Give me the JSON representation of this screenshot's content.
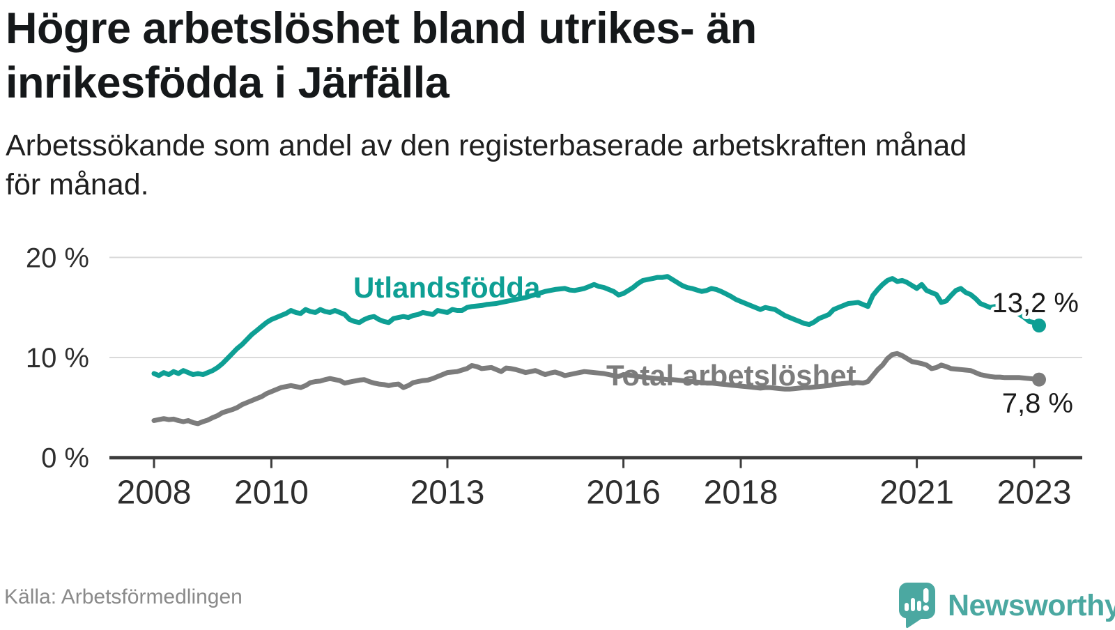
{
  "title": "Högre arbetslöshet bland utrikes- än\ninrikesfödda i Järfälla",
  "subtitle": "Arbetssökande som andel av den registerbaserade arbetskraften månad\nför månad.",
  "source": "Källa: Arbetsförmedlingen",
  "branding": {
    "name": "Newsworthy",
    "logo_color": "#4ba8a1"
  },
  "chart_data": {
    "type": "line",
    "unit": "%",
    "frequency": "monthly",
    "start_month": "2008-01",
    "end_month": "2023-02",
    "ylim": [
      0,
      20
    ],
    "grid": "horizontal",
    "y_ticks": [
      {
        "value": 20,
        "label": "20 %"
      },
      {
        "value": 10,
        "label": "10 %"
      },
      {
        "value": 0,
        "label": "0 %"
      }
    ],
    "x_ticks": [
      {
        "year": 2008,
        "label": "2008"
      },
      {
        "year": 2010,
        "label": "2010"
      },
      {
        "year": 2013,
        "label": "2013"
      },
      {
        "year": 2016,
        "label": "2016"
      },
      {
        "year": 2018,
        "label": "2018"
      },
      {
        "year": 2021,
        "label": "2021"
      },
      {
        "year": 2023,
        "label": "2023"
      }
    ],
    "series": [
      {
        "name": "Utlandsfödda",
        "color": "#0e9f94",
        "end_label": "13,2 %",
        "end_value": 13.2,
        "values": [
          8.4,
          8.2,
          8.5,
          8.3,
          8.6,
          8.4,
          8.7,
          8.5,
          8.3,
          8.4,
          8.3,
          8.5,
          8.7,
          9.0,
          9.4,
          9.9,
          10.4,
          10.9,
          11.3,
          11.8,
          12.3,
          12.7,
          13.1,
          13.5,
          13.8,
          14.0,
          14.2,
          14.4,
          14.7,
          14.5,
          14.4,
          14.8,
          14.6,
          14.5,
          14.8,
          14.6,
          14.5,
          14.7,
          14.5,
          14.3,
          13.8,
          13.6,
          13.5,
          13.8,
          14.0,
          14.1,
          13.8,
          13.6,
          13.5,
          13.9,
          14.0,
          14.1,
          14.0,
          14.2,
          14.3,
          14.5,
          14.4,
          14.3,
          14.7,
          14.6,
          14.5,
          14.8,
          14.7,
          14.7,
          15.0,
          15.1,
          15.15,
          15.2,
          15.3,
          15.35,
          15.4,
          15.5,
          15.6,
          15.7,
          15.8,
          15.9,
          16.0,
          16.15,
          16.3,
          16.45,
          16.6,
          16.7,
          16.8,
          16.85,
          16.9,
          16.75,
          16.7,
          16.8,
          16.9,
          17.1,
          17.3,
          17.1,
          17.0,
          16.8,
          16.6,
          16.25,
          16.4,
          16.7,
          17.0,
          17.4,
          17.7,
          17.8,
          17.9,
          18.0,
          18.0,
          18.1,
          17.8,
          17.5,
          17.2,
          17.0,
          16.9,
          16.75,
          16.6,
          16.7,
          16.9,
          16.8,
          16.6,
          16.35,
          16.1,
          15.8,
          15.6,
          15.4,
          15.2,
          15.0,
          14.8,
          15.0,
          14.9,
          14.8,
          14.5,
          14.2,
          14.0,
          13.8,
          13.6,
          13.4,
          13.3,
          13.55,
          13.9,
          14.1,
          14.3,
          14.8,
          15.0,
          15.2,
          15.4,
          15.45,
          15.5,
          15.3,
          15.1,
          16.2,
          16.8,
          17.3,
          17.7,
          17.9,
          17.6,
          17.7,
          17.5,
          17.2,
          16.9,
          17.3,
          16.7,
          16.5,
          16.3,
          15.5,
          15.65,
          16.2,
          16.7,
          16.9,
          16.5,
          16.3,
          15.9,
          15.4,
          15.2,
          15.0,
          15.1,
          14.9,
          14.7,
          14.7,
          14.6,
          14.3,
          14.0,
          13.6,
          13.5,
          13.2
        ]
      },
      {
        "name": "Total arbetslöshet",
        "color": "#7c7c7c",
        "end_label": "7,8 %",
        "end_value": 7.8,
        "values": [
          3.7,
          3.8,
          3.9,
          3.8,
          3.85,
          3.7,
          3.6,
          3.7,
          3.5,
          3.4,
          3.6,
          3.75,
          4.0,
          4.2,
          4.5,
          4.65,
          4.8,
          5.0,
          5.3,
          5.5,
          5.7,
          5.9,
          6.1,
          6.4,
          6.6,
          6.8,
          7.0,
          7.1,
          7.2,
          7.1,
          7.0,
          7.2,
          7.5,
          7.6,
          7.65,
          7.8,
          7.9,
          7.8,
          7.7,
          7.45,
          7.55,
          7.65,
          7.75,
          7.8,
          7.6,
          7.45,
          7.35,
          7.3,
          7.2,
          7.3,
          7.35,
          7.0,
          7.2,
          7.5,
          7.6,
          7.7,
          7.75,
          7.9,
          8.1,
          8.3,
          8.5,
          8.55,
          8.6,
          8.75,
          8.9,
          9.2,
          9.1,
          8.9,
          8.95,
          9.0,
          8.8,
          8.6,
          8.95,
          8.9,
          8.8,
          8.65,
          8.5,
          8.6,
          8.7,
          8.5,
          8.3,
          8.45,
          8.55,
          8.4,
          8.2,
          8.3,
          8.4,
          8.5,
          8.6,
          8.55,
          8.5,
          8.45,
          8.4,
          8.3,
          8.2,
          8.1,
          8.3,
          8.25,
          8.2,
          8.1,
          8.05,
          8.0,
          7.95,
          7.9,
          7.85,
          7.8,
          7.8,
          7.75,
          7.7,
          7.65,
          7.6,
          7.55,
          7.5,
          7.45,
          7.45,
          7.4,
          7.35,
          7.3,
          7.25,
          7.2,
          7.15,
          7.1,
          7.05,
          7.0,
          6.95,
          7.0,
          7.0,
          6.95,
          6.9,
          6.85,
          6.85,
          6.9,
          6.95,
          7.0,
          7.0,
          7.05,
          7.1,
          7.15,
          7.2,
          7.3,
          7.35,
          7.4,
          7.45,
          7.5,
          7.5,
          7.45,
          7.6,
          8.2,
          8.8,
          9.25,
          9.9,
          10.3,
          10.4,
          10.2,
          9.9,
          9.6,
          9.5,
          9.4,
          9.25,
          8.9,
          9.0,
          9.25,
          9.1,
          8.9,
          8.85,
          8.8,
          8.75,
          8.7,
          8.5,
          8.3,
          8.2,
          8.1,
          8.05,
          8.05,
          8.0,
          8.0,
          8.0,
          8.0,
          7.95,
          7.9,
          7.85,
          7.8
        ]
      }
    ]
  }
}
